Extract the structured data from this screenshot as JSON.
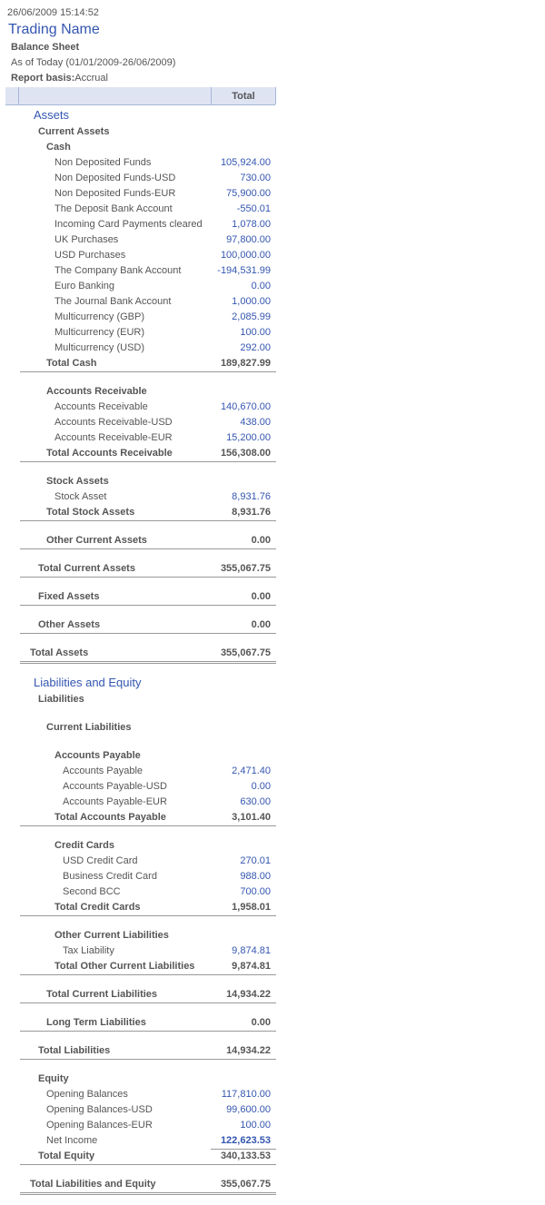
{
  "header": {
    "timestamp": "26/06/2009 15:14:52",
    "company": "Trading Name",
    "report_title": "Balance Sheet",
    "period": "As of Today (01/01/2009-26/06/2009)",
    "basis_label": "Report basis:",
    "basis_value": "Accrual",
    "column_total": "Total"
  },
  "colors": {
    "accent": "#3456b0",
    "text": "#555555",
    "header_bg": "#dfe4f3"
  },
  "rows": [
    {
      "t": "heading",
      "label": "Assets"
    },
    {
      "t": "section",
      "level": 1,
      "label": "Current Assets"
    },
    {
      "t": "section",
      "level": 2,
      "label": "Cash"
    },
    {
      "t": "item",
      "level": 3,
      "label": "Non Deposited Funds",
      "value": "105,924.00"
    },
    {
      "t": "item",
      "level": 3,
      "label": "Non Deposited Funds-USD",
      "value": "730.00"
    },
    {
      "t": "item",
      "level": 3,
      "label": "Non Deposited Funds-EUR",
      "value": "75,900.00"
    },
    {
      "t": "item",
      "level": 3,
      "label": "The Deposit Bank Account",
      "value": "-550.01"
    },
    {
      "t": "item",
      "level": 3,
      "label": "Incoming Card Payments cleared",
      "value": "1,078.00"
    },
    {
      "t": "item",
      "level": 3,
      "label": "UK Purchases",
      "value": "97,800.00"
    },
    {
      "t": "item",
      "level": 3,
      "label": "USD Purchases",
      "value": "100,000.00"
    },
    {
      "t": "item",
      "level": 3,
      "label": "The Company Bank Account",
      "value": "-194,531.99"
    },
    {
      "t": "item",
      "level": 3,
      "label": "Euro Banking",
      "value": "0.00"
    },
    {
      "t": "item",
      "level": 3,
      "label": "The Journal Bank Account",
      "value": "1,000.00"
    },
    {
      "t": "item",
      "level": 3,
      "label": "Multicurrency (GBP)",
      "value": "2,085.99"
    },
    {
      "t": "item",
      "level": 3,
      "label": "Multicurrency (EUR)",
      "value": "100.00"
    },
    {
      "t": "item",
      "level": 3,
      "label": "Multicurrency (USD)",
      "value": "292.00"
    },
    {
      "t": "total",
      "level": 2,
      "label": "Total Cash",
      "value": "189,827.99"
    },
    {
      "t": "spacer"
    },
    {
      "t": "section",
      "level": 2,
      "label": "Accounts Receivable"
    },
    {
      "t": "item",
      "level": 3,
      "label": "Accounts Receivable",
      "value": "140,670.00"
    },
    {
      "t": "item",
      "level": 3,
      "label": "Accounts Receivable-USD",
      "value": "438.00"
    },
    {
      "t": "item",
      "level": 3,
      "label": "Accounts Receivable-EUR",
      "value": "15,200.00"
    },
    {
      "t": "total",
      "level": 2,
      "label": "Total Accounts Receivable",
      "value": "156,308.00"
    },
    {
      "t": "spacer"
    },
    {
      "t": "section",
      "level": 2,
      "label": "Stock Assets"
    },
    {
      "t": "item",
      "level": 3,
      "label": "Stock Asset",
      "value": "8,931.76"
    },
    {
      "t": "total",
      "level": 2,
      "label": "Total Stock Assets",
      "value": "8,931.76"
    },
    {
      "t": "spacer"
    },
    {
      "t": "total",
      "level": 2,
      "label": "Other Current Assets",
      "value": "0.00"
    },
    {
      "t": "spacer"
    },
    {
      "t": "total",
      "level": 1,
      "label": "Total Current Assets",
      "value": "355,067.75"
    },
    {
      "t": "spacer"
    },
    {
      "t": "total",
      "level": 1,
      "label": "Fixed Assets",
      "value": "0.00"
    },
    {
      "t": "spacer"
    },
    {
      "t": "total",
      "level": 1,
      "label": "Other Assets",
      "value": "0.00"
    },
    {
      "t": "spacer"
    },
    {
      "t": "total",
      "level": 0,
      "double": true,
      "label": "Total Assets",
      "value": "355,067.75"
    },
    {
      "t": "spacer"
    },
    {
      "t": "heading",
      "label": "Liabilities and Equity"
    },
    {
      "t": "section",
      "level": 1,
      "label": "Liabilities"
    },
    {
      "t": "spacer"
    },
    {
      "t": "section",
      "level": 2,
      "label": "Current Liabilities"
    },
    {
      "t": "spacer"
    },
    {
      "t": "section",
      "level": 3,
      "label": "Accounts Payable"
    },
    {
      "t": "item",
      "level": 4,
      "label": "Accounts Payable",
      "value": "2,471.40"
    },
    {
      "t": "item",
      "level": 4,
      "label": "Accounts Payable-USD",
      "value": "0.00"
    },
    {
      "t": "item",
      "level": 4,
      "label": "Accounts Payable-EUR",
      "value": "630.00"
    },
    {
      "t": "total",
      "level": 3,
      "label": "Total Accounts Payable",
      "value": "3,101.40"
    },
    {
      "t": "spacer"
    },
    {
      "t": "section",
      "level": 3,
      "label": "Credit Cards"
    },
    {
      "t": "item",
      "level": 4,
      "label": "USD Credit Card",
      "value": "270.01"
    },
    {
      "t": "item",
      "level": 4,
      "label": "Business Credit Card",
      "value": "988.00"
    },
    {
      "t": "item",
      "level": 4,
      "label": "Second BCC",
      "value": "700.00"
    },
    {
      "t": "total",
      "level": 3,
      "label": "Total Credit Cards",
      "value": "1,958.01"
    },
    {
      "t": "spacer"
    },
    {
      "t": "section",
      "level": 3,
      "label": "Other Current Liabilities"
    },
    {
      "t": "item",
      "level": 4,
      "label": "Tax Liability",
      "value": "9,874.81"
    },
    {
      "t": "total",
      "level": 3,
      "label": "Total Other Current Liabilities",
      "value": "9,874.81"
    },
    {
      "t": "spacer"
    },
    {
      "t": "total",
      "level": 2,
      "label": "Total Current Liabilities",
      "value": "14,934.22"
    },
    {
      "t": "spacer"
    },
    {
      "t": "total",
      "level": 2,
      "label": "Long Term Liabilities",
      "value": "0.00"
    },
    {
      "t": "spacer"
    },
    {
      "t": "total",
      "level": 1,
      "label": "Total Liabilities",
      "value": "14,934.22"
    },
    {
      "t": "spacer"
    },
    {
      "t": "section",
      "level": 1,
      "label": "Equity"
    },
    {
      "t": "item",
      "level": 2,
      "label": "Opening Balances",
      "value": "117,810.00"
    },
    {
      "t": "item",
      "level": 2,
      "label": "Opening Balances-USD",
      "value": "99,600.00"
    },
    {
      "t": "item",
      "level": 2,
      "label": "Opening Balances-EUR",
      "value": "100.00"
    },
    {
      "t": "item",
      "level": 2,
      "emph": true,
      "label": "Net Income",
      "value": "122,623.53"
    },
    {
      "t": "total",
      "level": 1,
      "label": "Total Equity",
      "value": "340,133.53"
    },
    {
      "t": "spacer"
    },
    {
      "t": "total",
      "level": 0,
      "double": true,
      "label": "Total Liabilities and Equity",
      "value": "355,067.75"
    }
  ]
}
